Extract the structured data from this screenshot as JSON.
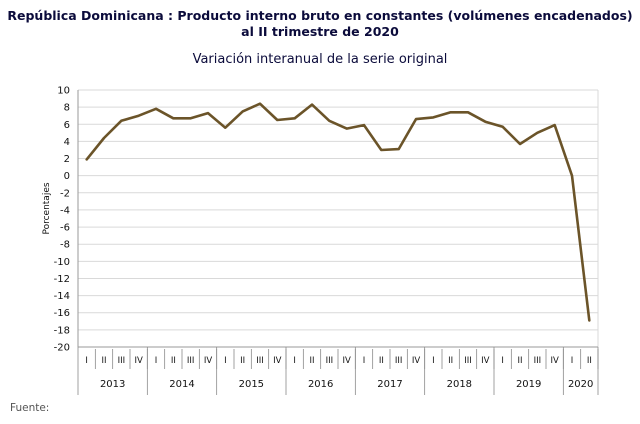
{
  "chart_data": {
    "type": "line",
    "title_line1": "República Dominicana : Producto interno bruto en constantes (volúmenes encadenados)",
    "title_line2": "al II trimestre de 2020",
    "subtitle": "Variación interanual de la serie original",
    "ylabel": "Porcentajes",
    "xlabel": "",
    "ylim": [
      -20,
      10
    ],
    "yticks": [
      10,
      8,
      6,
      4,
      2,
      0,
      -2,
      -4,
      -6,
      -8,
      -10,
      -12,
      -14,
      -16,
      -18,
      -20
    ],
    "grid": true,
    "quarter_labels": [
      "I",
      "II",
      "III",
      "IV",
      "I",
      "II",
      "III",
      "IV",
      "I",
      "II",
      "III",
      "IV",
      "I",
      "II",
      "III",
      "IV",
      "I",
      "II",
      "III",
      "IV",
      "I",
      "II",
      "III",
      "IV",
      "I",
      "II",
      "III",
      "IV",
      "I",
      "II"
    ],
    "years": [
      {
        "label": "2013",
        "quarters": 4
      },
      {
        "label": "2014",
        "quarters": 4
      },
      {
        "label": "2015",
        "quarters": 4
      },
      {
        "label": "2016",
        "quarters": 4
      },
      {
        "label": "2017",
        "quarters": 4
      },
      {
        "label": "2018",
        "quarters": 4
      },
      {
        "label": "2019",
        "quarters": 4
      },
      {
        "label": "2020",
        "quarters": 2
      }
    ],
    "series": [
      {
        "color": "#6b5429",
        "values": [
          1.9,
          4.4,
          6.4,
          7.0,
          7.8,
          6.7,
          6.7,
          7.3,
          5.6,
          7.5,
          8.4,
          6.5,
          6.7,
          8.3,
          6.4,
          5.5,
          5.9,
          3.0,
          3.1,
          6.6,
          6.8,
          7.4,
          7.4,
          6.3,
          5.7,
          3.7,
          5.0,
          5.9,
          0.0,
          -16.9
        ]
      }
    ]
  },
  "footer": {
    "source_label": "Fuente:"
  }
}
